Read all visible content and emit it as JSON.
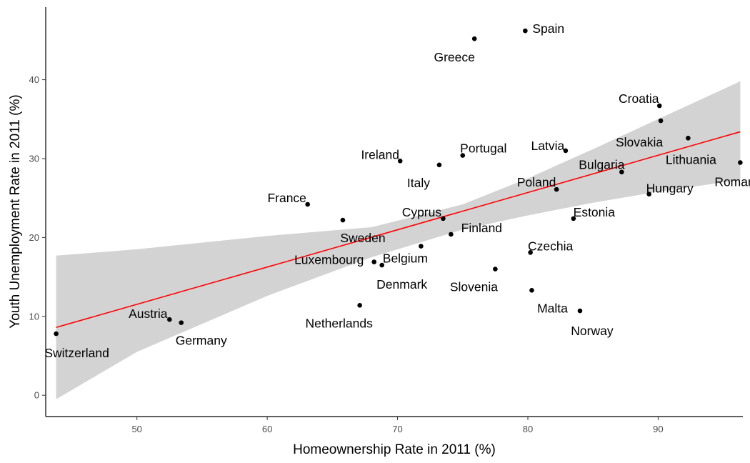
{
  "chart_data": {
    "type": "scatter",
    "xlabel": "Homeownership Rate in 2011 (%)",
    "ylabel": "Youth Unemployment Rate in 2011 (%)",
    "xlim": [
      43,
      96.5
    ],
    "ylim": [
      -2.7,
      49.2
    ],
    "xticks": [
      50,
      60,
      70,
      80,
      90
    ],
    "yticks": [
      0,
      10,
      20,
      30,
      40
    ],
    "grid": false,
    "legend": "none",
    "point_color": "#000000",
    "trend_color": "#ff0000",
    "band_color": "#d3d3d3",
    "trend": {
      "x": [
        43.8,
        96.3
      ],
      "y": [
        8.6,
        33.4
      ]
    },
    "confidence_band": {
      "x": [
        43.8,
        50,
        60,
        68,
        75,
        80,
        85,
        90,
        96.3
      ],
      "lower": [
        -0.5,
        5.5,
        12.6,
        17.5,
        21.0,
        22.8,
        24.4,
        25.8,
        27.3
      ],
      "upper": [
        17.7,
        18.5,
        20.2,
        21.3,
        24.2,
        27.5,
        31.2,
        35.0,
        39.8
      ]
    },
    "points": [
      {
        "label": "Spain",
        "x": 79.8,
        "y": 46.2,
        "anchor": "start",
        "dx": 10,
        "dy": -3
      },
      {
        "label": "Greece",
        "x": 75.9,
        "y": 45.2,
        "anchor": "middle",
        "dx": -28,
        "dy": 26
      },
      {
        "label": "Croatia",
        "x": 90.1,
        "y": 36.7,
        "anchor": "middle",
        "dx": -29,
        "dy": -10
      },
      {
        "label": "Slovakia",
        "x": 90.2,
        "y": 34.8,
        "anchor": "middle",
        "dx": -30,
        "dy": 30
      },
      {
        "label": "Lithuania",
        "x": 92.3,
        "y": 32.6,
        "anchor": "middle",
        "dx": 4,
        "dy": 30
      },
      {
        "label": "Latvia",
        "x": 82.9,
        "y": 31.0,
        "anchor": "middle",
        "dx": -25,
        "dy": -7
      },
      {
        "label": "Portugal",
        "x": 75.0,
        "y": 30.4,
        "anchor": "middle",
        "dx": 29,
        "dy": -10
      },
      {
        "label": "Ireland",
        "x": 70.2,
        "y": 29.7,
        "anchor": "middle",
        "dx": -28,
        "dy": -9
      },
      {
        "label": "Romania",
        "x": 96.3,
        "y": 29.5,
        "anchor": "middle",
        "dx": -1,
        "dy": 27
      },
      {
        "label": "Italy",
        "x": 73.2,
        "y": 29.2,
        "anchor": "middle",
        "dx": -29,
        "dy": 25
      },
      {
        "label": "Bulgaria",
        "x": 87.2,
        "y": 28.3,
        "anchor": "middle",
        "dx": -28,
        "dy": -10
      },
      {
        "label": "Poland",
        "x": 82.2,
        "y": 26.1,
        "anchor": "middle",
        "dx": -28,
        "dy": -10
      },
      {
        "label": "Hungary",
        "x": 89.3,
        "y": 25.5,
        "anchor": "middle",
        "dx": 29,
        "dy": -8
      },
      {
        "label": "France",
        "x": 63.1,
        "y": 24.2,
        "anchor": "middle",
        "dx": -29,
        "dy": -9
      },
      {
        "label": "Estonia",
        "x": 83.5,
        "y": 22.4,
        "anchor": "middle",
        "dx": 29,
        "dy": -9
      },
      {
        "label": "Cyprus",
        "x": 73.5,
        "y": 22.4,
        "anchor": "middle",
        "dx": -30,
        "dy": -9
      },
      {
        "label": "Sweden",
        "x": 65.8,
        "y": 22.2,
        "anchor": "middle",
        "dx": 28,
        "dy": 25
      },
      {
        "label": "Finland",
        "x": 74.1,
        "y": 20.4,
        "anchor": "middle",
        "dx": 43,
        "dy": -9
      },
      {
        "label": "Belgium",
        "x": 71.8,
        "y": 18.9,
        "anchor": "middle",
        "dx": -22,
        "dy": 17
      },
      {
        "label": "Czechia",
        "x": 80.2,
        "y": 18.1,
        "anchor": "middle",
        "dx": 28,
        "dy": -9
      },
      {
        "label": "Luxembourg",
        "x": 68.2,
        "y": 16.9,
        "anchor": "middle",
        "dx": -63,
        "dy": -3
      },
      {
        "label": "Denmark",
        "x": 68.8,
        "y": 16.5,
        "anchor": "middle",
        "dx": 28,
        "dy": 27
      },
      {
        "label": "Slovenia",
        "x": 77.5,
        "y": 16.0,
        "anchor": "middle",
        "dx": -30,
        "dy": 25
      },
      {
        "label": "Malta",
        "x": 80.3,
        "y": 13.3,
        "anchor": "middle",
        "dx": 29,
        "dy": 25
      },
      {
        "label": "Netherlands",
        "x": 67.1,
        "y": 11.4,
        "anchor": "middle",
        "dx": -29,
        "dy": 25
      },
      {
        "label": "Norway",
        "x": 84.0,
        "y": 10.7,
        "anchor": "middle",
        "dx": 17,
        "dy": 28
      },
      {
        "label": "Austria",
        "x": 52.5,
        "y": 9.6,
        "anchor": "middle",
        "dx": -30,
        "dy": -8
      },
      {
        "label": "Germany",
        "x": 53.4,
        "y": 9.2,
        "anchor": "middle",
        "dx": 28,
        "dy": 25
      },
      {
        "label": "Switzerland",
        "x": 43.8,
        "y": 7.8,
        "anchor": "middle",
        "dx": 29,
        "dy": 27
      }
    ]
  }
}
